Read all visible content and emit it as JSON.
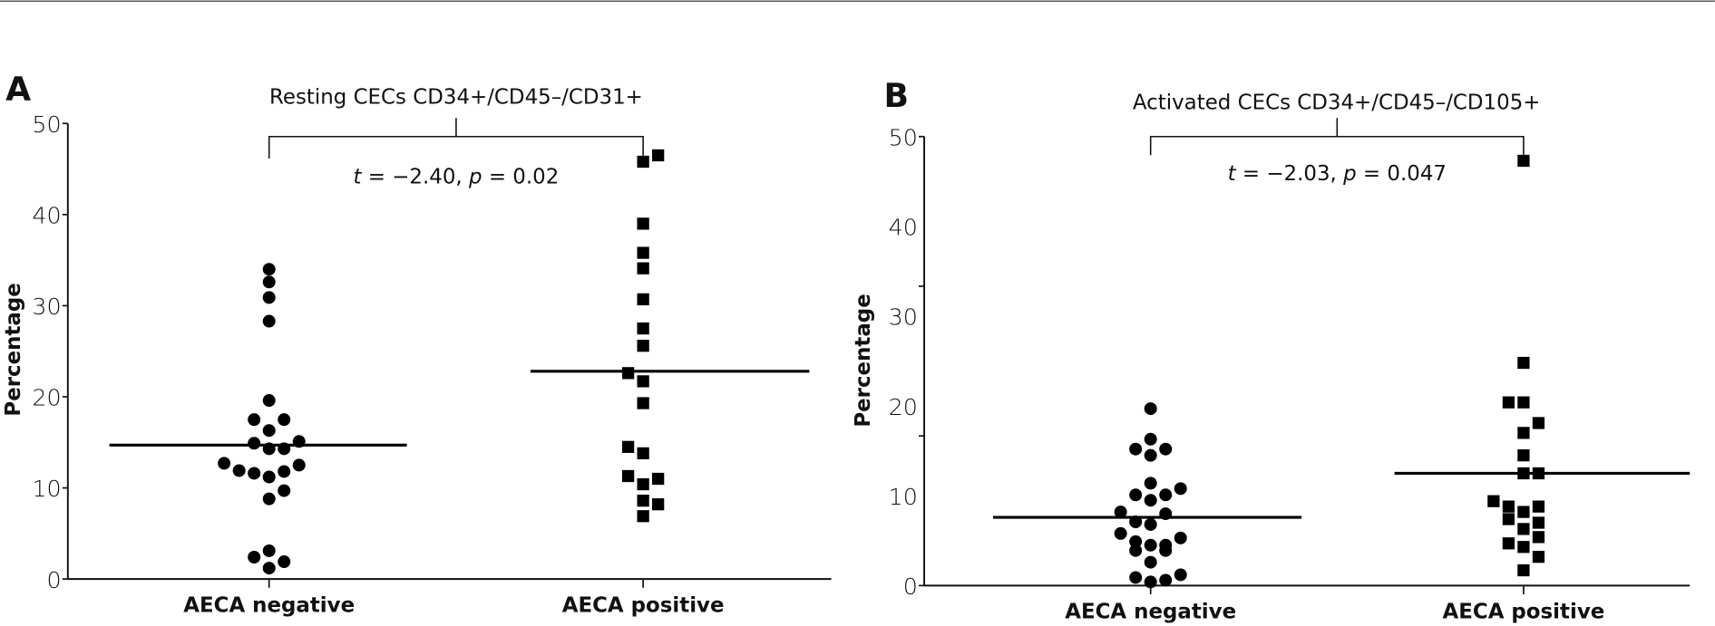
{
  "chart_data": [
    {
      "type": "scatter",
      "panel_label": "A",
      "title": "Resting CECs CD34+/CD45–/CD31+",
      "ylabel": "Percentage",
      "xlabel": "",
      "ylim": [
        0,
        50
      ],
      "yticks": [
        0,
        10,
        20,
        30,
        40,
        50
      ],
      "ytick_labels": [
        "0",
        "10",
        "20",
        "30",
        "40",
        "50"
      ],
      "categories": [
        "AECA negative",
        "AECA positive"
      ],
      "annotation": {
        "t_label": "t",
        "t_text": " = −2.40, ",
        "p_label": "p",
        "p_text": " = 0.02"
      },
      "series": [
        {
          "category": "AECA negative",
          "marker": "circle",
          "mean": 14.7,
          "values": [
            34.0,
            32.6,
            30.9,
            28.3,
            19.6,
            17.5,
            17.5,
            16.3,
            14.9,
            15.1,
            14.3,
            14.3,
            12.7,
            12.5,
            11.9,
            11.6,
            11.8,
            11.2,
            9.7,
            8.8,
            3.1,
            2.4,
            1.9,
            1.2
          ]
        },
        {
          "category": "AECA positive",
          "marker": "square",
          "mean": 22.8,
          "values": [
            46.5,
            45.8,
            39.0,
            35.8,
            34.1,
            30.7,
            27.5,
            25.6,
            22.6,
            21.7,
            19.3,
            14.5,
            13.8,
            11.3,
            10.4,
            11.0,
            8.6,
            8.2,
            6.9
          ]
        }
      ]
    },
    {
      "type": "scatter",
      "panel_label": "B",
      "title": "Activated CECs CD34+/CD45–/CD105+",
      "ylabel": "Percentage",
      "xlabel": "",
      "ylim": [
        0,
        50
      ],
      "yticks": [
        0,
        10,
        20,
        30,
        40,
        50
      ],
      "ytick_labels": [
        "0",
        "10",
        "20",
        "30",
        "40",
        "50"
      ],
      "categories": [
        "AECA negative",
        "AECA positive"
      ],
      "annotation": {
        "t_label": "t",
        "t_text": " = −2.03, ",
        "p_label": "p",
        "p_text": " = 0.047"
      },
      "series": [
        {
          "category": "AECA negative",
          "marker": "circle",
          "mean": 7.6,
          "values": [
            19.7,
            16.3,
            15.2,
            15.2,
            14.5,
            11.4,
            10.8,
            10.1,
            10.1,
            9.5,
            8.2,
            8.0,
            7.1,
            6.8,
            5.8,
            5.3,
            4.9,
            4.5,
            4.5,
            3.9,
            3.9,
            2.6,
            1.2,
            0.9,
            0.6,
            0.4
          ]
        },
        {
          "category": "AECA positive",
          "marker": "square",
          "mean": 12.5,
          "values": [
            47.3,
            24.8,
            20.4,
            20.4,
            18.1,
            17.0,
            14.5,
            12.5,
            12.5,
            9.4,
            8.8,
            8.2,
            8.8,
            7.4,
            7.0,
            6.3,
            5.4,
            4.7,
            4.3,
            3.2,
            1.7
          ]
        }
      ]
    }
  ]
}
